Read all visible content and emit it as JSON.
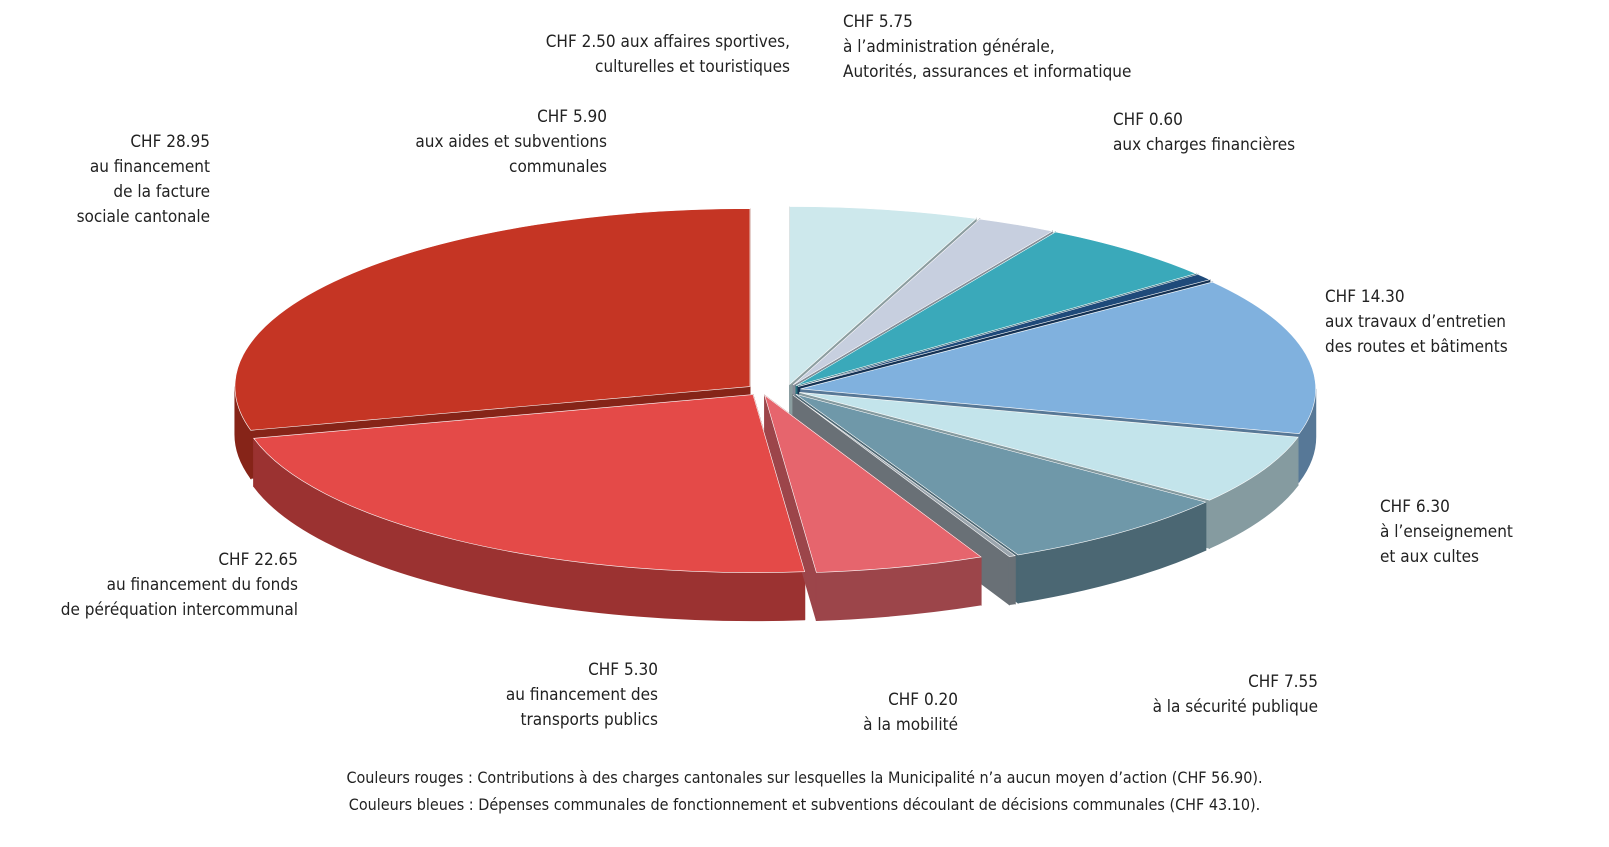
{
  "chart_data": {
    "type": "pie3d",
    "categories": [
      "aux aides et subventions\ncommunales",
      "aux affaires sportives,\nculturelles et touristiques",
      "à l’administration générale,\nAutorités, assurances et informatique",
      "aux charges financières",
      "aux travaux d’entretien\ndes routes et bâtiments",
      "à l’enseignement\net aux cultes",
      "à la sécurité publique",
      "à la mobilité",
      "au financement des\ntransports publics",
      "au financement du fonds\nde péréquation intercommunal",
      "au financement\nde la facture\nsociale cantonale"
    ],
    "values": [
      5.9,
      2.5,
      5.75,
      0.6,
      14.3,
      6.3,
      7.55,
      0.2,
      5.3,
      22.65,
      28.95
    ],
    "value_labels": [
      "CHF 5.90",
      "CHF 2.50",
      "CHF 5.75",
      "CHF 0.60",
      "CHF 14.30",
      "CHF 6.30",
      "CHF 7.55",
      "CHF 0.20",
      "CHF 5.30",
      "CHF 22.65",
      "CHF 28.95"
    ],
    "colors": [
      "#cde8ec",
      "#c7cfdf",
      "#3aa9ba",
      "#1f4a7a",
      "#80b1de",
      "#c3e4eb",
      "#6f98a9",
      "#9ba5ad",
      "#e6656d",
      "#e44a48",
      "#c53524"
    ],
    "notes": [
      "Couleurs rouges : Contributions à des charges cantonales sur lesquelles la Municipalité n’a aucun moyen d’action (CHF 56.90).",
      "Couleurs bleues : Dépenses communales de fonctionnement et subventions découlant de décisions communales (CHF 43.10)."
    ]
  }
}
